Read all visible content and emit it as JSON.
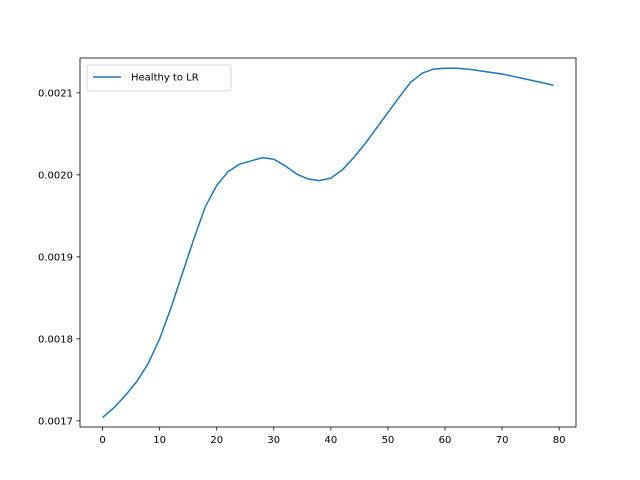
{
  "chart_data": {
    "type": "line",
    "title": "",
    "xlabel": "",
    "ylabel": "",
    "xlim": [
      -3.95,
      82.95
    ],
    "ylim": [
      0.0016925,
      0.0021425
    ],
    "xticks": [
      0,
      10,
      20,
      30,
      40,
      50,
      60,
      70,
      80
    ],
    "xtick_labels": [
      "0",
      "10",
      "20",
      "30",
      "40",
      "50",
      "60",
      "70",
      "80"
    ],
    "yticks": [
      0.0017,
      0.0018,
      0.0019,
      0.002,
      0.0021
    ],
    "ytick_labels": [
      "0.0017",
      "0.0018",
      "0.0019",
      "0.0020",
      "0.0021"
    ],
    "grid": false,
    "legend": {
      "placement": "top-left",
      "entries": [
        "Healthy to LR"
      ]
    },
    "series": [
      {
        "name": "Healthy to LR",
        "color": "#1f77b4",
        "x": [
          0,
          2,
          4,
          6,
          8,
          10,
          12,
          14,
          16,
          18,
          20,
          22,
          24,
          26,
          28,
          30,
          32,
          34,
          36,
          38,
          40,
          42,
          44,
          46,
          48,
          50,
          52,
          54,
          56,
          58,
          60,
          62,
          64,
          66,
          68,
          70,
          72,
          74,
          76,
          78,
          79
        ],
        "y": [
          0.001704,
          0.001716,
          0.001731,
          0.001748,
          0.00177,
          0.0018,
          0.001838,
          0.00188,
          0.001922,
          0.001961,
          0.001987,
          0.002004,
          0.002013,
          0.002017,
          0.002021,
          0.002019,
          0.002011,
          0.002001,
          0.001995,
          0.001993,
          0.001996,
          0.002006,
          0.002021,
          0.002038,
          0.002057,
          0.002076,
          0.002095,
          0.002113,
          0.002124,
          0.002129,
          0.00213,
          0.00213,
          0.002129,
          0.002127,
          0.002125,
          0.002123,
          0.00212,
          0.002117,
          0.002114,
          0.002111,
          0.002109
        ]
      }
    ]
  }
}
